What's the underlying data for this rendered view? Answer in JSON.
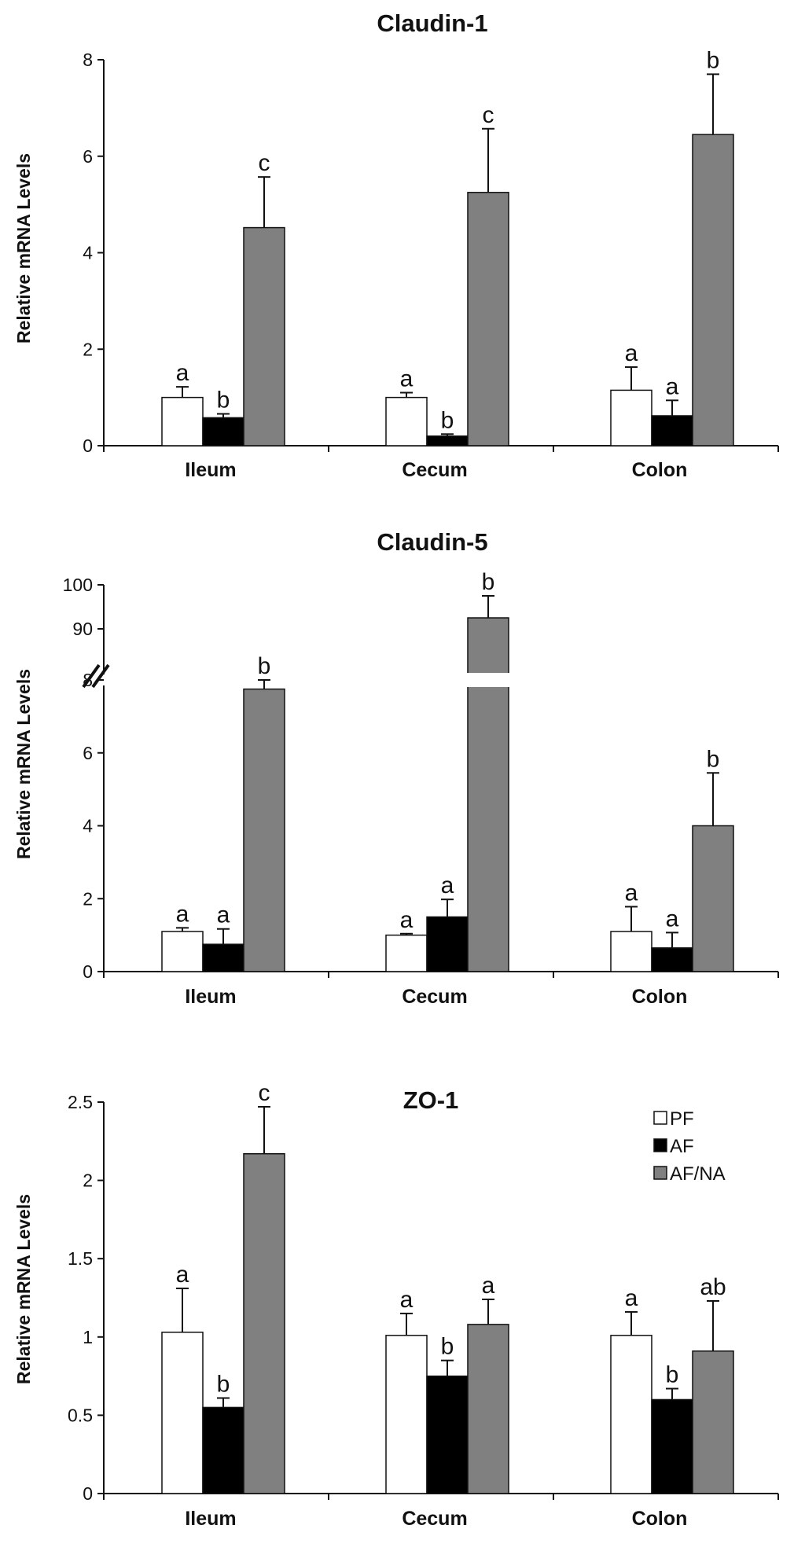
{
  "legend": [
    {
      "name": "PF",
      "color": "#ffffff"
    },
    {
      "name": "AF",
      "color": "#000000"
    },
    {
      "name": "AF/NA",
      "color": "#808080"
    }
  ],
  "chart_data": [
    {
      "type": "bar",
      "title": "Claudin-1",
      "ylabel": "Relative mRNA Levels",
      "categories": [
        "Ileum",
        "Cecum",
        "Colon"
      ],
      "ylim": [
        0,
        8
      ],
      "yticks": [
        "0",
        "2",
        "4",
        "6",
        "8"
      ],
      "series": [
        {
          "name": "PF",
          "values": [
            1.0,
            1.0,
            1.15
          ],
          "errors": [
            0.22,
            0.1,
            0.48
          ],
          "labels": [
            "a",
            "a",
            "a"
          ]
        },
        {
          "name": "AF",
          "values": [
            0.58,
            0.2,
            0.62
          ],
          "errors": [
            0.08,
            0.04,
            0.32
          ],
          "labels": [
            "b",
            "b",
            "a"
          ]
        },
        {
          "name": "AF/NA",
          "values": [
            4.52,
            5.25,
            6.45
          ],
          "errors": [
            1.05,
            1.32,
            1.25
          ],
          "labels": [
            "c",
            "c",
            "b"
          ]
        }
      ]
    },
    {
      "type": "bar",
      "title": "Claudin-5",
      "ylabel": "Relative mRNA Levels",
      "categories": [
        "Ileum",
        "Cecum",
        "Colon"
      ],
      "axis_break": {
        "lower_max": 8,
        "upper_min": 90,
        "upper_max": 100
      },
      "yticks": [
        "0",
        "2",
        "4",
        "6",
        "8",
        "90",
        "100"
      ],
      "series": [
        {
          "name": "PF",
          "values": [
            1.1,
            1.0,
            1.1
          ],
          "errors": [
            0.1,
            0.04,
            0.68
          ],
          "labels": [
            "a",
            "a",
            "a"
          ]
        },
        {
          "name": "AF",
          "values": [
            0.75,
            1.5,
            0.65
          ],
          "errors": [
            0.42,
            0.48,
            0.42
          ],
          "labels": [
            "a",
            "a",
            "a"
          ]
        },
        {
          "name": "AF/NA",
          "values": [
            7.75,
            92.5,
            4.0
          ],
          "errors": [
            0.45,
            5.0,
            1.45
          ],
          "labels": [
            "b",
            "b",
            "b"
          ]
        }
      ]
    },
    {
      "type": "bar",
      "title": "ZO-1",
      "ylabel": "Relative mRNA Levels",
      "categories": [
        "Ileum",
        "Cecum",
        "Colon"
      ],
      "ylim": [
        0,
        2.5
      ],
      "yticks": [
        "0",
        "0.5",
        "1",
        "1.5",
        "2",
        "2.5"
      ],
      "series": [
        {
          "name": "PF",
          "values": [
            1.03,
            1.01,
            1.01
          ],
          "errors": [
            0.28,
            0.14,
            0.15
          ],
          "labels": [
            "a",
            "a",
            "a"
          ]
        },
        {
          "name": "AF",
          "values": [
            0.55,
            0.75,
            0.6
          ],
          "errors": [
            0.06,
            0.1,
            0.07
          ],
          "labels": [
            "b",
            "b",
            "b"
          ]
        },
        {
          "name": "AF/NA",
          "values": [
            2.17,
            1.08,
            0.91
          ],
          "errors": [
            0.3,
            0.16,
            0.32
          ],
          "labels": [
            "c",
            "a",
            "ab"
          ]
        }
      ]
    }
  ]
}
